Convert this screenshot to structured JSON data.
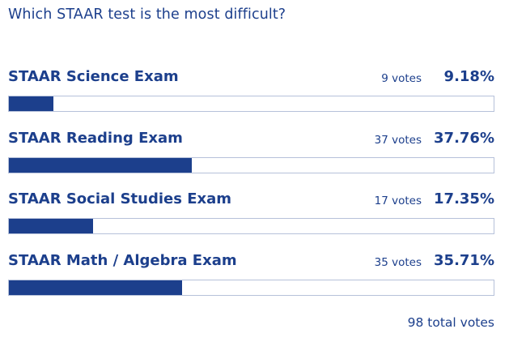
{
  "poll": {
    "question": "Which STAAR test is the most difficult?",
    "accent_color": "#1c3f8c",
    "options": [
      {
        "label": "STAAR Science Exam",
        "votes": "9 votes",
        "percent_label": "9.18%",
        "percent": 9.18
      },
      {
        "label": "STAAR Reading Exam",
        "votes": "37 votes",
        "percent_label": "37.76%",
        "percent": 37.76
      },
      {
        "label": "STAAR Social Studies Exam",
        "votes": "17 votes",
        "percent_label": "17.35%",
        "percent": 17.35
      },
      {
        "label": "STAAR Math / Algebra Exam",
        "votes": "35 votes",
        "percent_label": "35.71%",
        "percent": 35.71
      }
    ],
    "total": "98 total votes"
  }
}
